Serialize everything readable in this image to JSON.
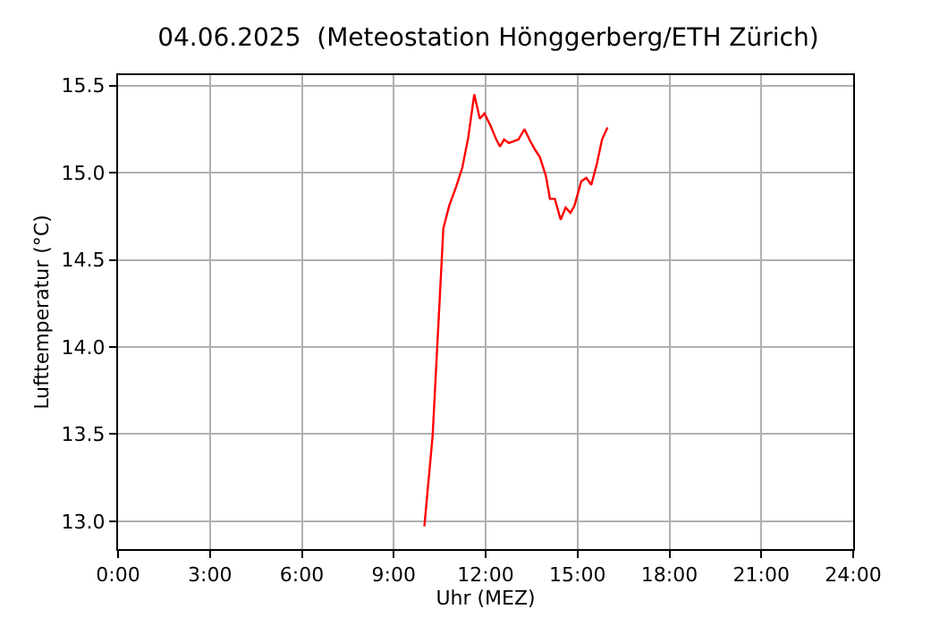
{
  "chart_data": {
    "type": "line",
    "title": "04.06.2025  (Meteostation Hönggerberg/ETH Zürich)",
    "xlabel": "Uhr (MEZ)",
    "ylabel": "Lufttemperatur (°C)",
    "x": [
      10.0,
      10.27,
      10.62,
      10.81,
      11.04,
      11.24,
      11.43,
      11.63,
      11.81,
      11.96,
      12.16,
      12.35,
      12.47,
      12.6,
      12.76,
      13.07,
      13.27,
      13.46,
      13.62,
      13.77,
      13.97,
      14.1,
      14.26,
      14.45,
      14.61,
      14.77,
      14.9,
      15.12,
      15.29,
      15.45,
      15.63,
      15.8,
      15.98
    ],
    "series": [
      {
        "color": "#ff0000",
        "values": [
          12.97,
          13.49,
          14.68,
          14.81,
          14.92,
          15.03,
          15.2,
          15.45,
          15.31,
          15.34,
          15.27,
          15.19,
          15.15,
          15.19,
          15.17,
          15.19,
          15.25,
          15.18,
          15.13,
          15.09,
          14.98,
          14.85,
          14.85,
          14.73,
          14.8,
          14.77,
          14.81,
          14.95,
          14.97,
          14.93,
          15.05,
          15.19,
          15.26
        ]
      }
    ],
    "xlim": [
      0,
      24
    ],
    "ylim": [
      12.84,
      15.56
    ],
    "xticks": [
      {
        "value": 0,
        "label": "0:00"
      },
      {
        "value": 3,
        "label": "3:00"
      },
      {
        "value": 6,
        "label": "6:00"
      },
      {
        "value": 9,
        "label": "9:00"
      },
      {
        "value": 12,
        "label": "12:00"
      },
      {
        "value": 15,
        "label": "15:00"
      },
      {
        "value": 18,
        "label": "18:00"
      },
      {
        "value": 21,
        "label": "21:00"
      },
      {
        "value": 24,
        "label": "24:00"
      }
    ],
    "yticks": [
      {
        "value": 13,
        "label": "13.0"
      },
      {
        "value": 13.5,
        "label": "13.5"
      },
      {
        "value": 14,
        "label": "14.0"
      },
      {
        "value": 14.5,
        "label": "14.5"
      },
      {
        "value": 15,
        "label": "15.0"
      },
      {
        "value": 15.5,
        "label": "15.5"
      }
    ],
    "grid": true,
    "marker": "none",
    "line_style": "solid"
  }
}
